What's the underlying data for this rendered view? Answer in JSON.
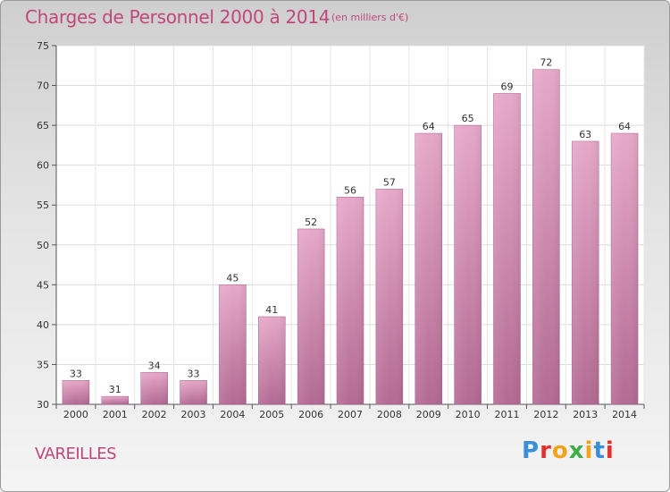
{
  "chart_data": {
    "type": "bar",
    "title": "Charges de Personnel 2000 à 2014",
    "subtitle": "(en milliers d'€)",
    "categories": [
      "2000",
      "2001",
      "2002",
      "2003",
      "2004",
      "2005",
      "2006",
      "2007",
      "2008",
      "2009",
      "2010",
      "2011",
      "2012",
      "2013",
      "2014"
    ],
    "values": [
      33,
      31,
      34,
      33,
      45,
      41,
      52,
      56,
      57,
      64,
      65,
      69,
      72,
      63,
      64
    ],
    "ylim": [
      30,
      75
    ],
    "yticks": [
      30,
      35,
      40,
      45,
      50,
      55,
      60,
      65,
      70,
      75
    ],
    "grid": true,
    "bar_color": "#d88fb5"
  },
  "commune": "VAREILLES",
  "logo": {
    "text": "Proxiti",
    "letters": [
      "P",
      "r",
      "o",
      "x",
      "i",
      "t",
      "i"
    ],
    "colors": [
      "#3a8fd8",
      "#e0312f",
      "#f4a21c",
      "#3fae49",
      "#f4a21c",
      "#3a8fd8",
      "#e0312f"
    ]
  }
}
